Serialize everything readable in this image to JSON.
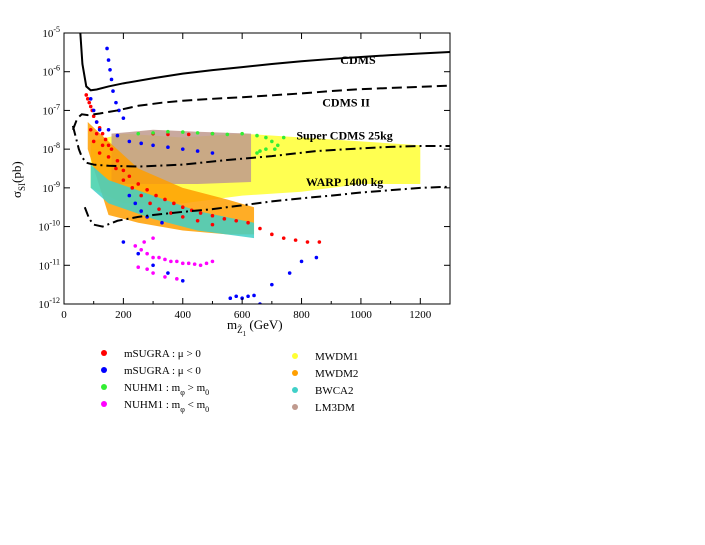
{
  "chart_data": {
    "type": "scatter",
    "title": "",
    "xlabel": {
      "main": "m",
      "sub": "Z̃",
      "subsub": "1",
      "unit": " (GeV)"
    },
    "ylabel": {
      "main": "σ",
      "sub": "SI",
      "unit": "(pb)"
    },
    "xlim": [
      0,
      1300
    ],
    "ylim_log10": [
      -12,
      -5
    ],
    "x_ticks": [
      "0",
      "200",
      "400",
      "600",
      "800",
      "1000",
      "1200"
    ],
    "x_tick_values": [
      0,
      200,
      400,
      600,
      800,
      1000,
      1200
    ],
    "y_ticks": [
      {
        "exp": -12,
        "base": "10",
        "sup": "-12"
      },
      {
        "exp": -11,
        "base": "10",
        "sup": "-11"
      },
      {
        "exp": -10,
        "base": "10",
        "sup": "-10"
      },
      {
        "exp": -9,
        "base": "10",
        "sup": "-9"
      },
      {
        "exp": -8,
        "base": "10",
        "sup": "-8"
      },
      {
        "exp": -7,
        "base": "10",
        "sup": "-7"
      },
      {
        "exp": -6,
        "base": "10",
        "sup": "-6"
      },
      {
        "exp": -5,
        "base": "10",
        "sup": "-5"
      }
    ],
    "grid": false,
    "legend_position": "below",
    "limit_curves": [
      {
        "name": "CDMS",
        "style": "solid",
        "points": [
          [
            55,
            -5
          ],
          [
            62,
            -5.8
          ],
          [
            75,
            -6.38
          ],
          [
            90,
            -6.48
          ],
          [
            110,
            -6.46
          ],
          [
            150,
            -6.38
          ],
          [
            200,
            -6.3
          ],
          [
            300,
            -6.17
          ],
          [
            400,
            -6.05
          ],
          [
            500,
            -5.96
          ],
          [
            600,
            -5.88
          ],
          [
            700,
            -5.8
          ],
          [
            800,
            -5.73
          ],
          [
            900,
            -5.67
          ],
          [
            1000,
            -5.62
          ],
          [
            1100,
            -5.57
          ],
          [
            1200,
            -5.53
          ],
          [
            1300,
            -5.49
          ]
        ]
      },
      {
        "name": "CDMS II",
        "style": "dashed",
        "points": [
          [
            30,
            -7.5
          ],
          [
            45,
            -7.2
          ],
          [
            60,
            -7.1
          ],
          [
            80,
            -7.12
          ],
          [
            120,
            -7.08
          ],
          [
            180,
            -7.0
          ],
          [
            250,
            -6.88
          ],
          [
            330,
            -6.8
          ],
          [
            400,
            -6.75
          ],
          [
            500,
            -6.7
          ],
          [
            600,
            -6.66
          ],
          [
            700,
            -6.61
          ],
          [
            800,
            -6.56
          ],
          [
            900,
            -6.5
          ],
          [
            1000,
            -6.45
          ],
          [
            1100,
            -6.42
          ],
          [
            1200,
            -6.39
          ],
          [
            1300,
            -6.36
          ]
        ]
      },
      {
        "name": "Super CDMS 25kg",
        "style": "dashdot",
        "points": [
          [
            30,
            -7.4
          ],
          [
            40,
            -7.7
          ],
          [
            50,
            -8.0
          ],
          [
            60,
            -8.2
          ],
          [
            75,
            -8.35
          ],
          [
            100,
            -8.4
          ],
          [
            150,
            -8.43
          ],
          [
            250,
            -8.45
          ],
          [
            400,
            -8.4
          ],
          [
            550,
            -8.28
          ],
          [
            700,
            -8.18
          ],
          [
            850,
            -8.05
          ],
          [
            1000,
            -7.98
          ],
          [
            1100,
            -7.94
          ],
          [
            1200,
            -7.92
          ],
          [
            1300,
            -7.92
          ]
        ]
      },
      {
        "name": "WARP 1400 kg",
        "style": "dashdot",
        "points": [
          [
            70,
            -9.5
          ],
          [
            85,
            -9.8
          ],
          [
            100,
            -9.95
          ],
          [
            130,
            -10.0
          ],
          [
            180,
            -9.85
          ],
          [
            250,
            -9.75
          ],
          [
            300,
            -9.7
          ],
          [
            400,
            -9.62
          ],
          [
            500,
            -9.55
          ],
          [
            600,
            -9.45
          ],
          [
            700,
            -9.35
          ],
          [
            800,
            -9.27
          ],
          [
            900,
            -9.2
          ],
          [
            1000,
            -9.12
          ],
          [
            1100,
            -9.06
          ],
          [
            1200,
            -9.0
          ],
          [
            1300,
            -8.97
          ]
        ]
      }
    ],
    "curve_labels": [
      {
        "text": "CDMS",
        "x": 990,
        "y": -5.8
      },
      {
        "text": "CDMS II",
        "x": 950,
        "y": -6.9
      },
      {
        "text": "Super CDMS 25kg",
        "x": 945,
        "y": -7.75
      },
      {
        "text": "WARP 1400 kg",
        "x": 945,
        "y": -8.95
      }
    ],
    "regions": [
      {
        "name": "MWDM1",
        "color": "#ffff33",
        "band": [
          [
            90,
            -9.0,
            -7.8
          ],
          [
            200,
            -9.4,
            -7.6
          ],
          [
            400,
            -9.4,
            -7.7
          ],
          [
            600,
            -9.2,
            -7.6
          ],
          [
            800,
            -9.1,
            -7.7
          ],
          [
            1000,
            -8.9,
            -7.8
          ],
          [
            1200,
            -8.9,
            -7.9
          ]
        ]
      },
      {
        "name": "LM3DM",
        "color": "#c09a8e",
        "band": [
          [
            160,
            -8.9,
            -7.6
          ],
          [
            300,
            -8.9,
            -7.5
          ],
          [
            450,
            -8.9,
            -7.55
          ],
          [
            630,
            -8.85,
            -7.6
          ]
        ]
      },
      {
        "name": "MWDM2",
        "color": "#ff9f00",
        "band": [
          [
            80,
            -8.0,
            -7.3
          ],
          [
            150,
            -9.7,
            -7.8
          ],
          [
            250,
            -9.9,
            -8.5
          ],
          [
            400,
            -10.1,
            -9.0
          ],
          [
            550,
            -10.2,
            -9.3
          ],
          [
            640,
            -10.2,
            -9.5
          ]
        ]
      },
      {
        "name": "BWCA2",
        "color": "#40d0c8",
        "band": [
          [
            90,
            -9.0,
            -8.4
          ],
          [
            150,
            -9.4,
            -8.8
          ],
          [
            300,
            -9.8,
            -9.2
          ],
          [
            450,
            -10.1,
            -9.6
          ],
          [
            640,
            -10.3,
            -9.9
          ]
        ]
      }
    ],
    "series": [
      {
        "name": "mSUGRA : μ > 0",
        "color": "#ff0000",
        "points": [
          [
            75,
            -6.6
          ],
          [
            80,
            -6.7
          ],
          [
            85,
            -6.8
          ],
          [
            90,
            -6.9
          ],
          [
            95,
            -7.0
          ],
          [
            100,
            -7.15
          ],
          [
            110,
            -7.3
          ],
          [
            120,
            -7.45
          ],
          [
            130,
            -7.6
          ],
          [
            140,
            -7.75
          ],
          [
            150,
            -7.9
          ],
          [
            160,
            -8.0
          ],
          [
            180,
            -8.3
          ],
          [
            200,
            -8.55
          ],
          [
            220,
            -8.7
          ],
          [
            250,
            -8.9
          ],
          [
            280,
            -9.05
          ],
          [
            310,
            -9.2
          ],
          [
            340,
            -9.3
          ],
          [
            370,
            -9.4
          ],
          [
            400,
            -9.5
          ],
          [
            430,
            -9.58
          ],
          [
            460,
            -9.65
          ],
          [
            500,
            -9.72
          ],
          [
            540,
            -9.8
          ],
          [
            580,
            -9.85
          ],
          [
            620,
            -9.9
          ],
          [
            660,
            -10.05
          ],
          [
            700,
            -10.2
          ],
          [
            740,
            -10.3
          ],
          [
            780,
            -10.35
          ],
          [
            820,
            -10.4
          ],
          [
            860,
            -10.4
          ],
          [
            110,
            -7.6
          ],
          [
            130,
            -7.9
          ],
          [
            150,
            -8.2
          ],
          [
            175,
            -8.5
          ],
          [
            200,
            -8.8
          ],
          [
            230,
            -9.0
          ],
          [
            260,
            -9.2
          ],
          [
            290,
            -9.4
          ],
          [
            320,
            -9.55
          ],
          [
            360,
            -9.65
          ],
          [
            400,
            -9.75
          ],
          [
            450,
            -9.85
          ],
          [
            500,
            -9.95
          ],
          [
            300,
            -7.6
          ],
          [
            350,
            -7.62
          ],
          [
            420,
            -7.62
          ],
          [
            500,
            -7.6
          ],
          [
            90,
            -7.5
          ],
          [
            100,
            -7.8
          ],
          [
            120,
            -8.1
          ]
        ]
      },
      {
        "name": "mSUGRA : μ < 0",
        "color": "#0000ff",
        "points": [
          [
            145,
            -5.4
          ],
          [
            150,
            -5.7
          ],
          [
            155,
            -5.95
          ],
          [
            160,
            -6.2
          ],
          [
            165,
            -6.5
          ],
          [
            175,
            -6.8
          ],
          [
            185,
            -7.0
          ],
          [
            200,
            -7.2
          ],
          [
            150,
            -7.5
          ],
          [
            180,
            -7.65
          ],
          [
            220,
            -7.8
          ],
          [
            260,
            -7.85
          ],
          [
            300,
            -7.9
          ],
          [
            350,
            -7.95
          ],
          [
            400,
            -8.0
          ],
          [
            450,
            -8.05
          ],
          [
            500,
            -8.1
          ],
          [
            90,
            -6.7
          ],
          [
            100,
            -7.0
          ],
          [
            110,
            -7.3
          ],
          [
            120,
            -7.5
          ],
          [
            220,
            -9.2
          ],
          [
            240,
            -9.4
          ],
          [
            260,
            -9.6
          ],
          [
            280,
            -9.75
          ],
          [
            330,
            -9.9
          ],
          [
            200,
            -10.4
          ],
          [
            250,
            -10.7
          ],
          [
            300,
            -11.0
          ],
          [
            350,
            -11.2
          ],
          [
            400,
            -11.4
          ],
          [
            580,
            -11.8
          ],
          [
            600,
            -11.85
          ],
          [
            620,
            -11.8
          ],
          [
            640,
            -11.78
          ],
          [
            700,
            -11.5
          ],
          [
            760,
            -11.2
          ],
          [
            800,
            -10.9
          ],
          [
            850,
            -10.8
          ],
          [
            660,
            -12.0
          ],
          [
            560,
            -11.85
          ]
        ]
      },
      {
        "name": "NUHM1 : m",
        "phi": "φ",
        "rel": "> m",
        "sub0": "0",
        "color": "#33ee33",
        "points": [
          [
            250,
            -7.6
          ],
          [
            300,
            -7.58
          ],
          [
            350,
            -7.55
          ],
          [
            400,
            -7.56
          ],
          [
            450,
            -7.58
          ],
          [
            500,
            -7.6
          ],
          [
            550,
            -7.62
          ],
          [
            600,
            -7.6
          ],
          [
            650,
            -7.65
          ],
          [
            680,
            -7.7
          ],
          [
            700,
            -7.8
          ],
          [
            720,
            -7.9
          ],
          [
            680,
            -8.0
          ],
          [
            660,
            -8.05
          ],
          [
            650,
            -8.1
          ],
          [
            710,
            -8.0
          ],
          [
            740,
            -7.7
          ]
        ]
      },
      {
        "name": "NUHM1 : m",
        "phi": "φ",
        "rel": "< m",
        "sub0": "0",
        "color": "#ff00ff",
        "points": [
          [
            240,
            -10.5
          ],
          [
            260,
            -10.6
          ],
          [
            280,
            -10.7
          ],
          [
            300,
            -10.8
          ],
          [
            320,
            -10.8
          ],
          [
            340,
            -10.85
          ],
          [
            360,
            -10.9
          ],
          [
            380,
            -10.9
          ],
          [
            400,
            -10.95
          ],
          [
            420,
            -10.95
          ],
          [
            440,
            -10.97
          ],
          [
            460,
            -11.0
          ],
          [
            480,
            -10.95
          ],
          [
            500,
            -10.9
          ],
          [
            280,
            -11.1
          ],
          [
            300,
            -11.2
          ],
          [
            340,
            -11.3
          ],
          [
            380,
            -11.35
          ],
          [
            250,
            -11.05
          ],
          [
            270,
            -10.4
          ],
          [
            300,
            -10.3
          ]
        ]
      }
    ],
    "legend_left": [
      {
        "main": "mSUGRA : μ > 0",
        "color": "#ff0000"
      },
      {
        "main": "mSUGRA : μ < 0",
        "color": "#0000ff"
      },
      {
        "main": "NUHM1 : m",
        "sub": "φ",
        "tail": " > m",
        "tailsub": "0",
        "color": "#33ee33"
      },
      {
        "main": "NUHM1 : m",
        "sub": "φ",
        "tail": " < m",
        "tailsub": "0",
        "color": "#ff00ff"
      }
    ],
    "legend_right": [
      {
        "main": "MWDM1",
        "color": "#ffff33"
      },
      {
        "main": "MWDM2",
        "color": "#ff9f00"
      },
      {
        "main": "BWCA2",
        "color": "#40d0c8"
      },
      {
        "main": "LM3DM",
        "color": "#c09a8e"
      }
    ]
  }
}
